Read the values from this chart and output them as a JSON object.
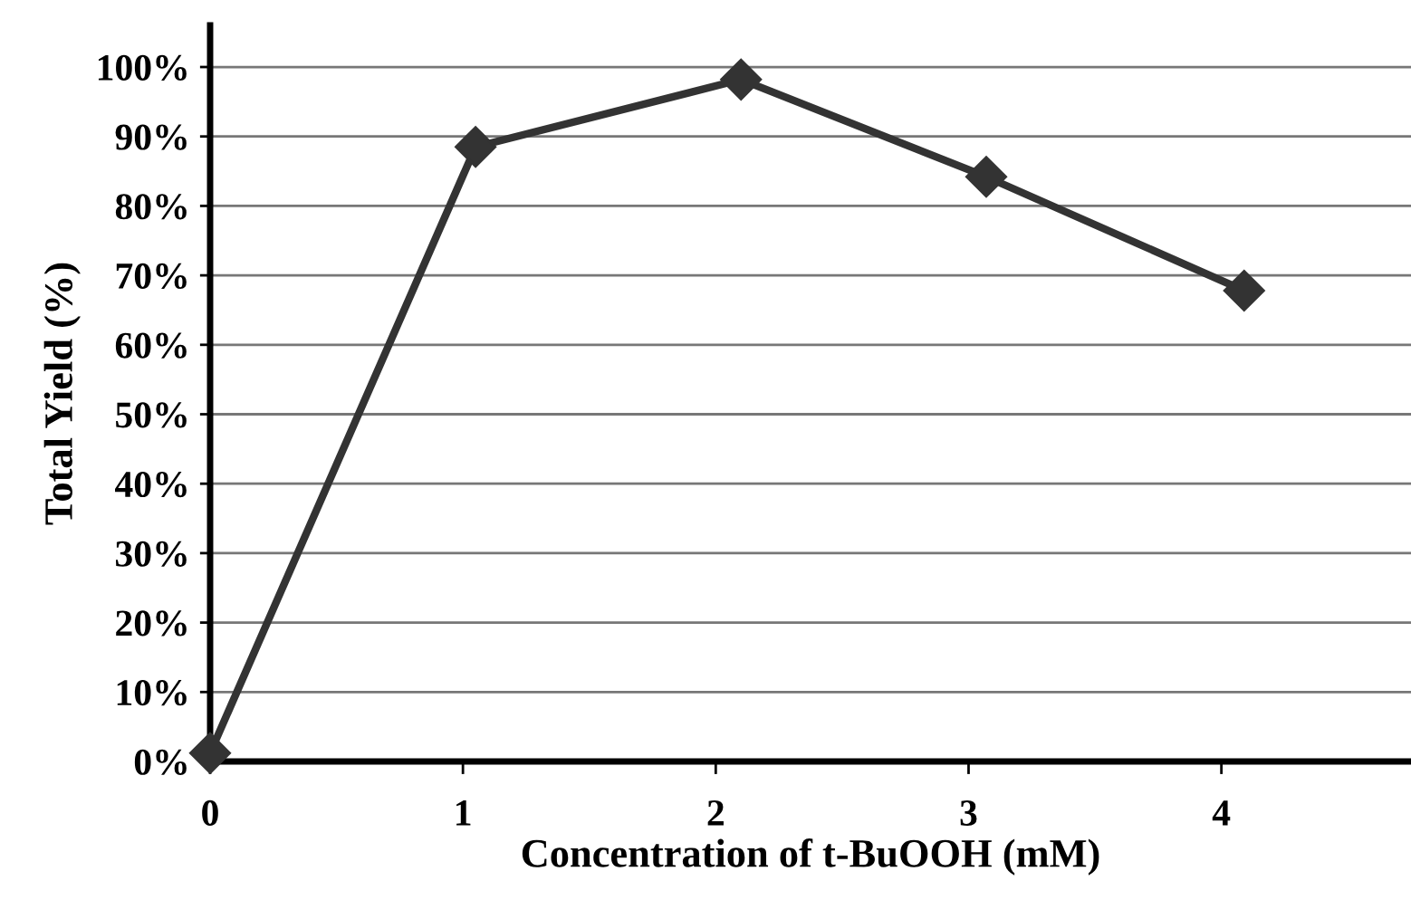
{
  "chart_data": {
    "type": "line",
    "xlabel": "Concentration of t-BuOOH (mM)",
    "ylabel": "Total Yield (%)",
    "x": [
      0,
      1.05,
      2.1,
      3.07,
      4.09
    ],
    "series": [
      {
        "color": "#333333",
        "values": [
          1.2,
          88.5,
          98.2,
          84.2,
          67.8
        ]
      }
    ],
    "marker": "diamond",
    "line_style": "solid",
    "xlim": [
      0,
      4.75
    ],
    "xticks": [
      0,
      1,
      2,
      3,
      4
    ],
    "ylim": [
      0,
      106
    ],
    "yticks": [
      {
        "value": 0,
        "label": "0%"
      },
      {
        "value": 10,
        "label": "10%"
      },
      {
        "value": 20,
        "label": "20%"
      },
      {
        "value": 30,
        "label": "30%"
      },
      {
        "value": 40,
        "label": "40%"
      },
      {
        "value": 50,
        "label": "50%"
      },
      {
        "value": 60,
        "label": "60%"
      },
      {
        "value": 70,
        "label": "70%"
      },
      {
        "value": 80,
        "label": "80%"
      },
      {
        "value": 90,
        "label": "90%"
      },
      {
        "value": 100,
        "label": "100%"
      }
    ],
    "grid": "y",
    "legend": false
  }
}
